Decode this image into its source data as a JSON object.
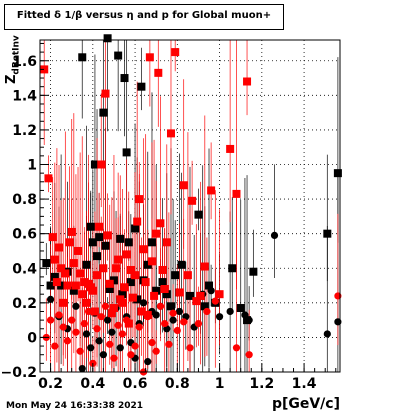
{
  "chart_data": {
    "type": "scatter",
    "title": "Fitted δ 1/β versus η and p for Global muon+",
    "xlabel": "p[GeV/c]",
    "ylabel": "Z",
    "ylabel_sub": "dBetInv",
    "xlim": [
      0.15,
      1.57
    ],
    "ylim": [
      -0.2,
      1.72
    ],
    "x_ticks": [
      "0.2",
      "0.4",
      "0.6",
      "0.8",
      "1",
      "1.2",
      "1.4"
    ],
    "y_ticks": [
      "−0.2",
      "0",
      "0.2",
      "0.4",
      "0.6",
      "0.8",
      "1",
      "1.2",
      "1.4",
      "1.6"
    ],
    "grid": true,
    "series": [
      {
        "color": "#000000",
        "marker": "square",
        "points": [
          [
            0.18,
            0.43
          ],
          [
            0.2,
            0.3
          ],
          [
            0.22,
            0.35
          ],
          [
            0.25,
            0.3
          ],
          [
            0.28,
            0.38
          ],
          [
            0.31,
            0.27
          ],
          [
            0.35,
            1.62
          ],
          [
            0.37,
            0.42
          ],
          [
            0.39,
            0.64
          ],
          [
            0.4,
            0.55
          ],
          [
            0.41,
            1.0
          ],
          [
            0.42,
            0.47
          ],
          [
            0.43,
            0.58
          ],
          [
            0.45,
            1.3
          ],
          [
            0.46,
            0.53
          ],
          [
            0.47,
            1.73
          ],
          [
            0.48,
            0.28
          ],
          [
            0.5,
            0.33
          ],
          [
            0.52,
            1.63
          ],
          [
            0.53,
            0.57
          ],
          [
            0.54,
            0.25
          ],
          [
            0.55,
            1.5
          ],
          [
            0.56,
            1.07
          ],
          [
            0.57,
            0.55
          ],
          [
            0.58,
            0.32
          ],
          [
            0.6,
            0.63
          ],
          [
            0.61,
            0.22
          ],
          [
            0.63,
            1.45
          ],
          [
            0.64,
            0.33
          ],
          [
            0.66,
            0.42
          ],
          [
            0.68,
            0.55
          ],
          [
            0.7,
            0.27
          ],
          [
            0.73,
            0.32
          ],
          [
            0.75,
            0.25
          ],
          [
            0.77,
            0.18
          ],
          [
            0.79,
            0.36
          ],
          [
            0.82,
            0.42
          ],
          [
            0.86,
            0.24
          ],
          [
            0.9,
            0.71
          ],
          [
            0.91,
            0.24
          ],
          [
            0.93,
            0.18
          ],
          [
            0.95,
            0.3
          ],
          [
            0.98,
            0.2
          ],
          [
            1.06,
            0.4
          ],
          [
            1.1,
            0.17
          ],
          [
            1.13,
            0.1
          ],
          [
            1.16,
            0.38
          ],
          [
            1.51,
            0.6
          ],
          [
            1.56,
            0.95
          ]
        ]
      },
      {
        "color": "#000000",
        "marker": "circle",
        "points": [
          [
            0.2,
            0.22
          ],
          [
            0.24,
            0.12
          ],
          [
            0.28,
            0.05
          ],
          [
            0.32,
            0.18
          ],
          [
            0.35,
            -0.18
          ],
          [
            0.37,
            0.02
          ],
          [
            0.39,
            -0.06
          ],
          [
            0.41,
            0.14
          ],
          [
            0.43,
            -0.02
          ],
          [
            0.45,
            -0.1
          ],
          [
            0.47,
            0.1
          ],
          [
            0.49,
            0.03
          ],
          [
            0.51,
            0.17
          ],
          [
            0.53,
            -0.06
          ],
          [
            0.56,
            0.12
          ],
          [
            0.58,
            -0.03
          ],
          [
            0.6,
            -0.12
          ],
          [
            0.62,
            0.08
          ],
          [
            0.64,
            0.2
          ],
          [
            0.66,
            -0.14
          ],
          [
            0.68,
            0.15
          ],
          [
            0.7,
            0.13
          ],
          [
            0.72,
            0.18
          ],
          [
            0.75,
            0.05
          ],
          [
            0.78,
            0.1
          ],
          [
            0.81,
            0.15
          ],
          [
            0.84,
            0.12
          ],
          [
            0.88,
            0.06
          ],
          [
            0.92,
            0.25
          ],
          [
            0.96,
            0.27
          ],
          [
            1.0,
            0.12
          ],
          [
            1.05,
            0.15
          ],
          [
            1.12,
            0.13
          ],
          [
            1.14,
            0.1
          ],
          [
            1.26,
            0.59
          ],
          [
            1.51,
            0.02
          ],
          [
            1.56,
            0.09
          ]
        ]
      },
      {
        "color": "#ff0000",
        "marker": "square",
        "points": [
          [
            0.17,
            1.55
          ],
          [
            0.19,
            0.92
          ],
          [
            0.21,
            0.58
          ],
          [
            0.22,
            0.45
          ],
          [
            0.23,
            0.32
          ],
          [
            0.24,
            0.52
          ],
          [
            0.25,
            0.4
          ],
          [
            0.26,
            0.2
          ],
          [
            0.27,
            0.37
          ],
          [
            0.28,
            0.3
          ],
          [
            0.29,
            0.55
          ],
          [
            0.3,
            0.61
          ],
          [
            0.31,
            0.43
          ],
          [
            0.32,
            0.3
          ],
          [
            0.33,
            0.5
          ],
          [
            0.34,
            0.37
          ],
          [
            0.35,
            0.25
          ],
          [
            0.36,
            0.32
          ],
          [
            0.37,
            0.2
          ],
          [
            0.38,
            0.31
          ],
          [
            0.39,
            0.29
          ],
          [
            0.4,
            0.27
          ],
          [
            0.41,
            0.15
          ],
          [
            0.42,
            0.36
          ],
          [
            0.43,
            0.64
          ],
          [
            0.44,
            1.0
          ],
          [
            0.45,
            0.4
          ],
          [
            0.46,
            1.41
          ],
          [
            0.47,
            0.59
          ],
          [
            0.48,
            0.31
          ],
          [
            0.49,
            0.14
          ],
          [
            0.5,
            0.17
          ],
          [
            0.51,
            0.4
          ],
          [
            0.52,
            0.45
          ],
          [
            0.53,
            0.22
          ],
          [
            0.54,
            0.2
          ],
          [
            0.55,
            0.29
          ],
          [
            0.56,
            0.48
          ],
          [
            0.57,
            0.08
          ],
          [
            0.58,
            0.39
          ],
          [
            0.59,
            0.23
          ],
          [
            0.6,
            0.36
          ],
          [
            0.61,
            0.67
          ],
          [
            0.62,
            0.8
          ],
          [
            0.63,
            0.15
          ],
          [
            0.64,
            0.51
          ],
          [
            0.65,
            0.32
          ],
          [
            0.66,
            0.13
          ],
          [
            0.67,
            1.62
          ],
          [
            0.68,
            0.44
          ],
          [
            0.69,
            0.24
          ],
          [
            0.7,
            0.6
          ],
          [
            0.71,
            1.53
          ],
          [
            0.72,
            0.66
          ],
          [
            0.73,
            0.39
          ],
          [
            0.74,
            0.28
          ],
          [
            0.75,
            0.55
          ],
          [
            0.77,
            1.18
          ],
          [
            0.79,
            1.65
          ],
          [
            0.81,
            0.26
          ],
          [
            0.83,
            0.88
          ],
          [
            0.85,
            0.36
          ],
          [
            0.87,
            0.79
          ],
          [
            0.89,
            0.21
          ],
          [
            0.91,
            0.24
          ],
          [
            0.93,
            0.41
          ],
          [
            0.96,
            0.85
          ],
          [
            1.0,
            0.25
          ],
          [
            1.05,
            1.09
          ],
          [
            1.08,
            0.83
          ],
          [
            1.13,
            1.48
          ]
        ]
      },
      {
        "color": "#ff0000",
        "marker": "circle",
        "points": [
          [
            0.18,
            0.0
          ],
          [
            0.2,
            0.1
          ],
          [
            0.22,
            -0.05
          ],
          [
            0.24,
            0.13
          ],
          [
            0.26,
            0.06
          ],
          [
            0.28,
            -0.02
          ],
          [
            0.3,
            0.1
          ],
          [
            0.32,
            0.03
          ],
          [
            0.34,
            -0.08
          ],
          [
            0.36,
            0.08
          ],
          [
            0.38,
            0.15
          ],
          [
            0.4,
            -0.15
          ],
          [
            0.42,
            0.05
          ],
          [
            0.44,
            0.12
          ],
          [
            0.46,
            0.18
          ],
          [
            0.48,
            -0.04
          ],
          [
            0.5,
            -0.12
          ],
          [
            0.52,
            0.07
          ],
          [
            0.54,
            0.02
          ],
          [
            0.56,
            0.1
          ],
          [
            0.58,
            -0.1
          ],
          [
            0.6,
            -0.05
          ],
          [
            0.62,
            0.06
          ],
          [
            0.64,
            -0.2
          ],
          [
            0.66,
            0.12
          ],
          [
            0.68,
            -0.03
          ],
          [
            0.7,
            -0.08
          ],
          [
            0.72,
            0.18
          ],
          [
            0.74,
            0.08
          ],
          [
            0.76,
            -0.04
          ],
          [
            0.78,
            0.14
          ],
          [
            0.8,
            0.04
          ],
          [
            0.83,
            0.09
          ],
          [
            0.86,
            -0.06
          ],
          [
            0.9,
            0.08
          ],
          [
            0.94,
            0.15
          ],
          [
            0.98,
            0.21
          ],
          [
            1.08,
            -0.06
          ],
          [
            1.14,
            -0.1
          ],
          [
            1.56,
            0.24
          ]
        ]
      }
    ]
  },
  "footer": {
    "timestamp": "Mon May 24 16:33:38 2021"
  }
}
